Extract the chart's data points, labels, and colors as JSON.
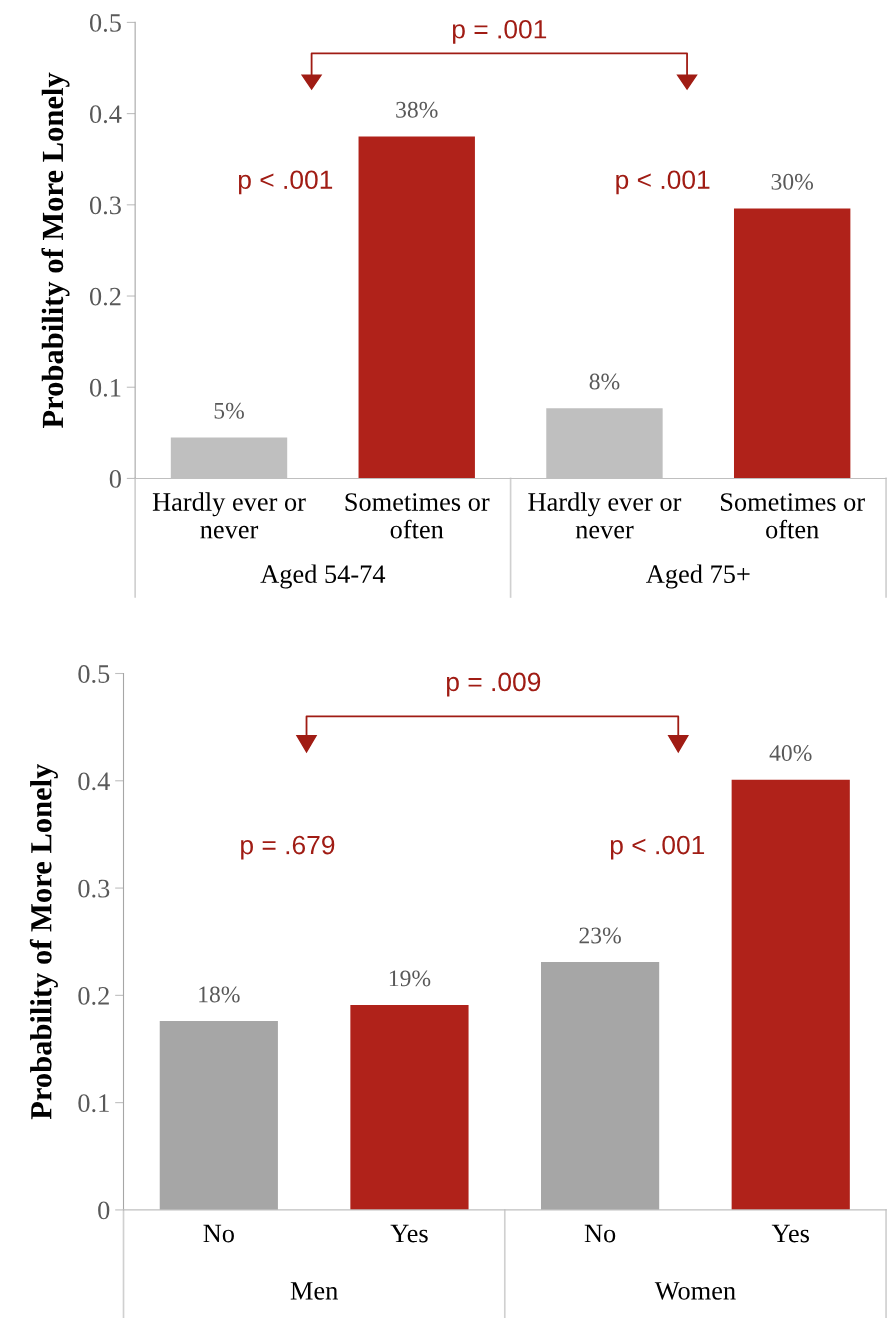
{
  "chart_data": [
    {
      "type": "bar",
      "ylabel": "Probability of More Lonely",
      "categories": [
        "Hardly ever or\nnever",
        "Sometimes or\noften",
        "Hardly ever or\nnever",
        "Sometimes or\noften"
      ],
      "values": [
        0.045,
        0.375,
        0.077,
        0.296
      ],
      "colors": [
        "#bfbfbf",
        "#b0221a",
        "#bfbfbf",
        "#b0221a"
      ],
      "value_labels": [
        "5%",
        "38%",
        "8%",
        "30%"
      ],
      "ylim": [
        0,
        0.5
      ],
      "yticks": [
        {
          "value": 0,
          "label": "0"
        },
        0.1,
        0.2,
        0.3,
        0.4,
        0.5
      ],
      "annotations": [
        "Aged 54-74",
        "Aged 75+",
        "p = .001",
        "p < .001",
        "p < .001"
      ]
    },
    {
      "type": "bar",
      "ylabel": "Probability of More Lonely",
      "categories": [
        "No",
        "Yes",
        "No",
        "Yes"
      ],
      "values": [
        0.176,
        0.191,
        0.231,
        0.401
      ],
      "colors": [
        "#a6a6a6",
        "#b0221a",
        "#a6a6a6",
        "#b0221a"
      ],
      "value_labels": [
        "18%",
        "19%",
        "23%",
        "40%"
      ],
      "ylim": [
        0,
        0.5
      ],
      "yticks": [
        {
          "value": 0,
          "label": "0"
        },
        0.1,
        0.2,
        0.3,
        0.4,
        0.5
      ],
      "annotations": [
        "Men",
        "Women",
        "p = .009",
        "p = .679",
        "p < .001"
      ]
    }
  ]
}
